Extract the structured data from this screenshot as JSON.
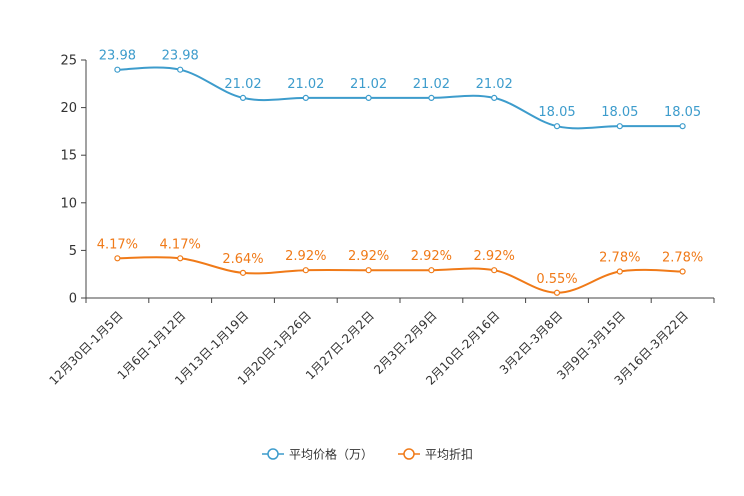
{
  "chart_data": {
    "type": "line",
    "title": "",
    "xlabel": "",
    "ylabel": "",
    "ylim": [
      0,
      25
    ],
    "yticks": [
      0,
      5,
      10,
      15,
      20,
      25
    ],
    "grid": false,
    "legend_position": "bottom-center",
    "categories": [
      "12月30日-1月5日",
      "1月6日-1月12日",
      "1月13日-1月19日",
      "1月20日-1月26日",
      "1月27日-2月2日",
      "2月3日-2月9日",
      "2月10日-2月16日",
      "3月2日-3月8日",
      "3月9日-3月15日",
      "3月16日-3月22日"
    ],
    "series": [
      {
        "name": "平均价格（万）",
        "color": "#3d9ccc",
        "values": [
          23.98,
          23.98,
          21.02,
          21.02,
          21.02,
          21.02,
          21.02,
          18.05,
          18.05,
          18.05
        ],
        "labels": [
          "23.98",
          "23.98",
          "21.02",
          "21.02",
          "21.02",
          "21.02",
          "21.02",
          "18.05",
          "18.05",
          "18.05"
        ]
      },
      {
        "name": "平均折扣",
        "color": "#f07a18",
        "values": [
          4.17,
          4.17,
          2.64,
          2.92,
          2.92,
          2.92,
          2.92,
          0.55,
          2.78,
          2.78
        ],
        "labels": [
          "4.17%",
          "4.17%",
          "2.64%",
          "2.92%",
          "2.92%",
          "2.92%",
          "2.92%",
          "0.55%",
          "2.78%",
          "2.78%"
        ]
      }
    ]
  }
}
